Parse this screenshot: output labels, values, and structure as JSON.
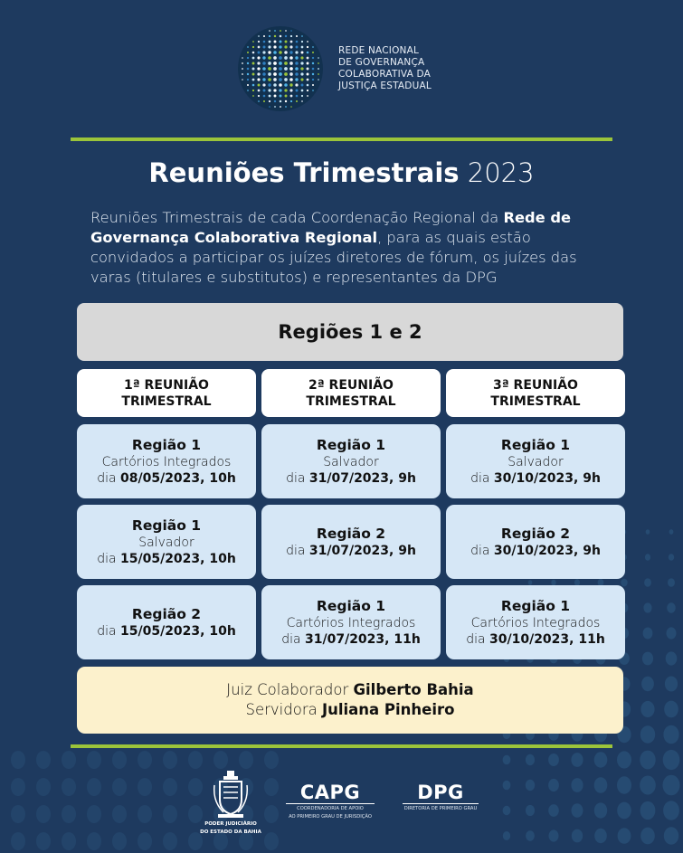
{
  "header": {
    "org_line1": "REDE NACIONAL",
    "org_line2": "DE GOVERNANÇA",
    "org_line3": "COLABORATIVA DA",
    "org_line4": "JUSTIÇA ESTADUAL"
  },
  "title": {
    "bold": "Reuniões Trimestrais",
    "year": "2023"
  },
  "intro": {
    "part1": "Reuniões Trimestrais de cada Coordenação Regional da ",
    "bold": "Rede de Governança Colaborativa Regional",
    "part2": ", para as quais estão convidados a participar os juízes diretores de fórum, os  juízes das varas (titulares e substitutos) e representantes da DPG"
  },
  "regions_title": "Regiões 1 e 2",
  "columns": [
    {
      "line1": "1ª REUNIÃO",
      "line2": "TRIMESTRAL"
    },
    {
      "line1": "2ª REUNIÃO",
      "line2": "TRIMESTRAL"
    },
    {
      "line1": "3ª REUNIÃO",
      "line2": "TRIMESTRAL"
    }
  ],
  "meetings": {
    "c1r1": {
      "region": "Região 1",
      "place": "Cartórios Integrados",
      "day": "dia ",
      "date": "08/05/2023, 10h"
    },
    "c1r2": {
      "region": "Região 1",
      "place": "Salvador",
      "day": "dia ",
      "date": "15/05/2023, 10h"
    },
    "c1r3": {
      "region": "Região 2",
      "day": "dia ",
      "date": "15/05/2023, 10h"
    },
    "c2r1": {
      "region": "Região 1",
      "place": "Salvador",
      "day": "dia ",
      "date": "31/07/2023, 9h"
    },
    "c2r2": {
      "region": "Região 2",
      "day": "dia ",
      "date": "31/07/2023, 9h"
    },
    "c2r3": {
      "region": "Região 1",
      "place": "Cartórios Integrados",
      "day": "dia ",
      "date": "31/07/2023, 11h"
    },
    "c3r1": {
      "region": "Região 1",
      "place": "Salvador",
      "day": "dia ",
      "date": "30/10/2023, 9h"
    },
    "c3r2": {
      "region": "Região 2",
      "day": "dia ",
      "date": "30/10/2023, 9h"
    },
    "c3r3": {
      "region": "Região 1",
      "place": "Cartórios Integrados",
      "day": "dia ",
      "date": "30/10/2023, 11h"
    }
  },
  "collaborators": {
    "judge_role": "Juiz Colaborador ",
    "judge_name": "Gilberto Bahia",
    "staff_role": "Servidora ",
    "staff_name": "Juliana Pinheiro"
  },
  "footer": {
    "pj_line1": "PODER JUDICIÁRIO",
    "pj_line2": "DO ESTADO DA BAHIA",
    "capg": "CAPG",
    "capg_sub1": "COORDENADORIA DE APOIO",
    "capg_sub2": "AO PRIMEIRO GRAU DE JURISDIÇÃO",
    "dpg": "DPG",
    "dpg_sub": "DIRETORIA DE PRIMEIRO GRAU"
  },
  "colors": {
    "background": "#1e3a5f",
    "accent_rule": "#9bc43a",
    "cell": "#d6e7f6",
    "highlight": "#fcf1cc"
  }
}
